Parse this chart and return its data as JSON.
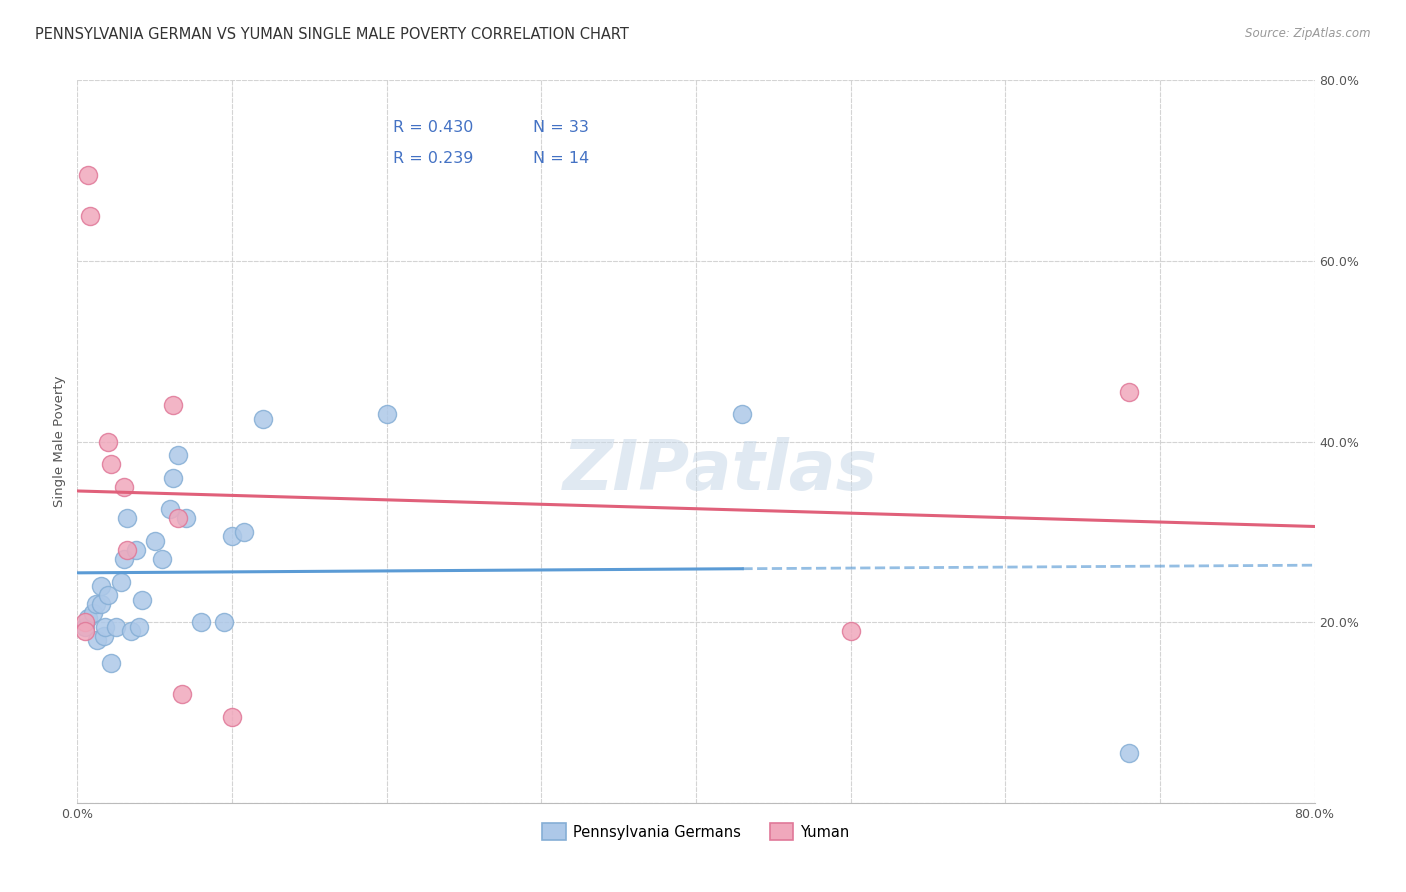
{
  "title": "PENNSYLVANIA GERMAN VS YUMAN SINGLE MALE POVERTY CORRELATION CHART",
  "source": "Source: ZipAtlas.com",
  "ylabel": "Single Male Poverty",
  "xlim": [
    0.0,
    0.8
  ],
  "ylim": [
    0.0,
    0.8
  ],
  "xticks": [
    0.0,
    0.1,
    0.2,
    0.3,
    0.4,
    0.5,
    0.6,
    0.7,
    0.8
  ],
  "yticks": [
    0.0,
    0.2,
    0.4,
    0.6,
    0.8
  ],
  "legend_label_blue": "Pennsylvania Germans",
  "legend_label_pink": "Yuman",
  "watermark": "ZIPatlas",
  "blue_R": "0.430",
  "blue_N": "33",
  "pink_R": "0.239",
  "pink_N": "14",
  "blue_scatter_x": [
    0.005,
    0.007,
    0.01,
    0.012,
    0.013,
    0.015,
    0.015,
    0.017,
    0.018,
    0.02,
    0.022,
    0.025,
    0.028,
    0.03,
    0.032,
    0.035,
    0.038,
    0.04,
    0.042,
    0.05,
    0.055,
    0.06,
    0.062,
    0.065,
    0.07,
    0.08,
    0.095,
    0.1,
    0.108,
    0.12,
    0.2,
    0.43,
    0.68
  ],
  "blue_scatter_y": [
    0.195,
    0.205,
    0.21,
    0.22,
    0.18,
    0.22,
    0.24,
    0.185,
    0.195,
    0.23,
    0.155,
    0.195,
    0.245,
    0.27,
    0.315,
    0.19,
    0.28,
    0.195,
    0.225,
    0.29,
    0.27,
    0.325,
    0.36,
    0.385,
    0.315,
    0.2,
    0.2,
    0.295,
    0.3,
    0.425,
    0.43,
    0.43,
    0.055
  ],
  "pink_scatter_x": [
    0.005,
    0.005,
    0.007,
    0.008,
    0.02,
    0.022,
    0.03,
    0.032,
    0.062,
    0.065,
    0.068,
    0.1,
    0.5,
    0.68
  ],
  "pink_scatter_y": [
    0.2,
    0.19,
    0.695,
    0.65,
    0.4,
    0.375,
    0.35,
    0.28,
    0.44,
    0.315,
    0.12,
    0.095,
    0.19,
    0.455
  ],
  "blue_line_color": "#5b9bd5",
  "pink_line_color": "#e0607a",
  "blue_dot_facecolor": "#adc8e8",
  "blue_dot_edgecolor": "#85aed5",
  "pink_dot_facecolor": "#f0a8bc",
  "pink_dot_edgecolor": "#e07898",
  "background_color": "#ffffff",
  "grid_color": "#d0d0d0",
  "title_color": "#333333",
  "title_fontsize": 10.5,
  "axis_label_fontsize": 9.5,
  "tick_fontsize": 9,
  "legend_value_color": "#4472c4",
  "legend_fontsize": 11.5,
  "dot_size": 170
}
